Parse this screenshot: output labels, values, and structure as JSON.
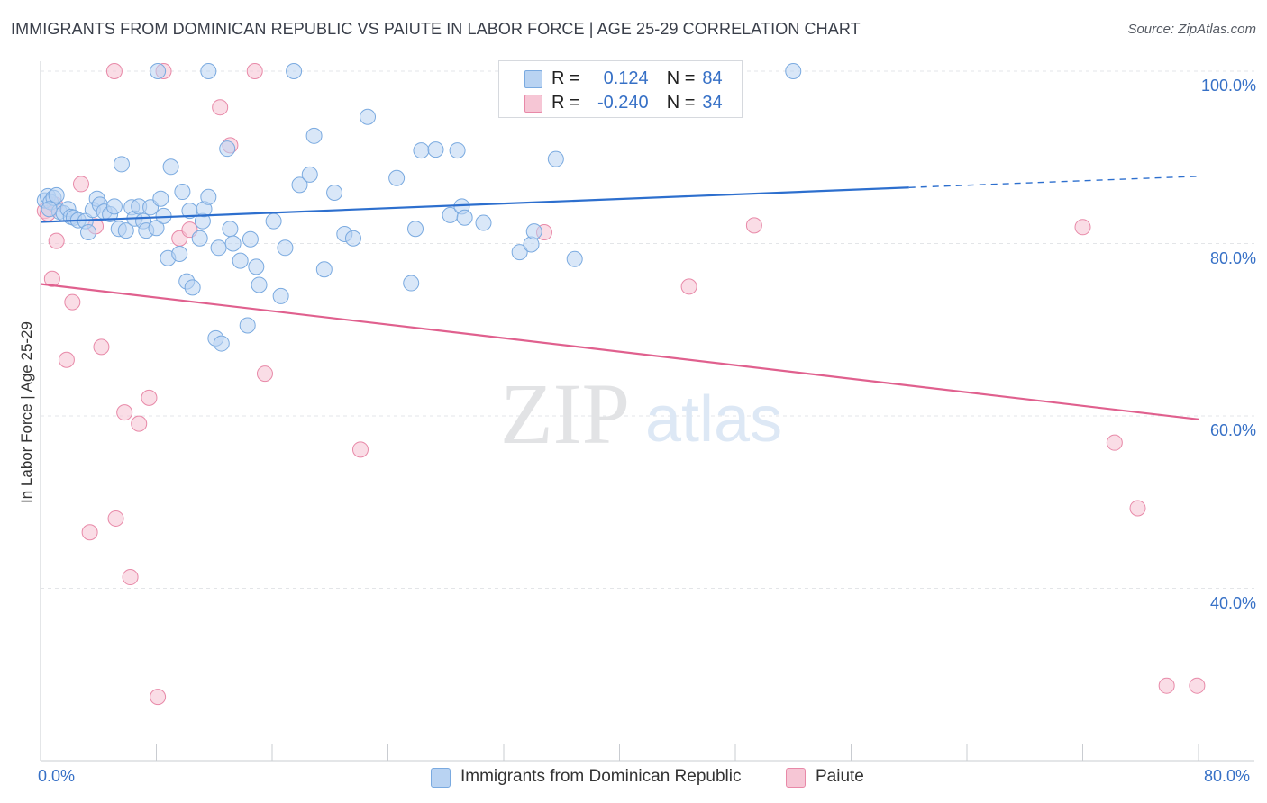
{
  "title": "IMMIGRANTS FROM DOMINICAN REPUBLIC VS PAIUTE IN LABOR FORCE | AGE 25-29 CORRELATION CHART",
  "source": "Source: ZipAtlas.com",
  "watermark": {
    "zip": "ZIP",
    "atlas": "atlas"
  },
  "legend": {
    "r_label": "R =",
    "n_label": "N =",
    "series": [
      {
        "name": "Immigrants from Dominican Republic",
        "r": "0.124",
        "n": "84",
        "color": "#7aaae0",
        "fill": "#b9d3f2"
      },
      {
        "name": "Paiute",
        "r": "-0.240",
        "n": "34",
        "color": "#e889a8",
        "fill": "#f6c6d5"
      }
    ]
  },
  "colors": {
    "blue_line": "#2d6fce",
    "pink_line": "#e0608e",
    "grid": "#e3e5e8",
    "tick_text": "#3670c6"
  },
  "chart_data": {
    "type": "scatter",
    "xlabel": "",
    "ylabel": "In Labor Force | Age 25-29",
    "xlim": [
      0,
      80
    ],
    "ylim": [
      20,
      100
    ],
    "x_tick_labels": {
      "min": "0.0%",
      "max": "80.0%"
    },
    "y_ticks": [
      {
        "value": 100,
        "label": "100.0%"
      },
      {
        "value": 80,
        "label": "80.0%"
      },
      {
        "value": 60,
        "label": "60.0%"
      },
      {
        "value": 40,
        "label": "40.0%"
      }
    ],
    "series": [
      {
        "name": "Immigrants from Dominican Republic",
        "trend": {
          "x0": 0,
          "y0": 82.5,
          "x1": 60,
          "y1": 86.5,
          "x_dashed_end": 80,
          "y_dashed_end": 87.8
        },
        "points": [
          [
            0.3,
            85.0
          ],
          [
            0.5,
            85.5
          ],
          [
            0.7,
            84.8
          ],
          [
            0.9,
            85.3
          ],
          [
            1.1,
            85.6
          ],
          [
            1.3,
            83.7
          ],
          [
            1.6,
            83.5
          ],
          [
            1.9,
            84.0
          ],
          [
            2.1,
            83.1
          ],
          [
            2.3,
            83.0
          ],
          [
            2.6,
            82.7
          ],
          [
            3.1,
            82.6
          ],
          [
            3.3,
            81.3
          ],
          [
            3.6,
            83.9
          ],
          [
            3.9,
            85.2
          ],
          [
            4.1,
            84.5
          ],
          [
            4.4,
            83.7
          ],
          [
            4.8,
            83.4
          ],
          [
            5.1,
            84.3
          ],
          [
            5.4,
            81.7
          ],
          [
            5.6,
            89.2
          ],
          [
            5.9,
            81.5
          ],
          [
            6.3,
            84.2
          ],
          [
            6.5,
            82.9
          ],
          [
            6.8,
            84.3
          ],
          [
            7.1,
            82.6
          ],
          [
            7.3,
            81.5
          ],
          [
            7.6,
            84.2
          ],
          [
            8.0,
            81.8
          ],
          [
            8.3,
            85.2
          ],
          [
            8.5,
            83.2
          ],
          [
            8.8,
            78.3
          ],
          [
            9.0,
            88.9
          ],
          [
            9.6,
            78.8
          ],
          [
            9.8,
            86.0
          ],
          [
            10.1,
            75.6
          ],
          [
            10.3,
            83.8
          ],
          [
            10.5,
            74.9
          ],
          [
            11.0,
            80.6
          ],
          [
            11.2,
            82.6
          ],
          [
            11.3,
            84.0
          ],
          [
            11.6,
            85.4
          ],
          [
            12.1,
            69.0
          ],
          [
            12.3,
            79.5
          ],
          [
            12.5,
            68.4
          ],
          [
            12.9,
            91.0
          ],
          [
            13.1,
            81.7
          ],
          [
            13.3,
            80.0
          ],
          [
            13.8,
            78.0
          ],
          [
            14.3,
            70.5
          ],
          [
            14.5,
            80.5
          ],
          [
            14.9,
            77.3
          ],
          [
            15.1,
            75.2
          ],
          [
            16.1,
            82.6
          ],
          [
            16.6,
            73.9
          ],
          [
            16.9,
            79.5
          ],
          [
            17.9,
            86.8
          ],
          [
            18.6,
            88.0
          ],
          [
            18.9,
            92.5
          ],
          [
            19.6,
            77.0
          ],
          [
            20.3,
            85.9
          ],
          [
            21.0,
            81.1
          ],
          [
            21.6,
            80.6
          ],
          [
            22.6,
            94.7
          ],
          [
            24.6,
            87.6
          ],
          [
            25.6,
            75.4
          ],
          [
            25.9,
            81.7
          ],
          [
            26.3,
            90.8
          ],
          [
            27.3,
            90.9
          ],
          [
            28.3,
            83.3
          ],
          [
            28.8,
            90.8
          ],
          [
            29.1,
            84.3
          ],
          [
            29.3,
            83.0
          ],
          [
            30.6,
            82.4
          ],
          [
            33.1,
            79.0
          ],
          [
            33.9,
            79.9
          ],
          [
            34.1,
            81.4
          ],
          [
            35.6,
            89.8
          ],
          [
            36.9,
            78.2
          ],
          [
            8.1,
            100.0
          ],
          [
            11.6,
            100.0
          ],
          [
            17.5,
            100.0
          ],
          [
            52.0,
            100.0
          ],
          [
            0.6,
            84.0
          ]
        ]
      },
      {
        "name": "Paiute",
        "trend": {
          "x0": 0,
          "y0": 75.3,
          "x1": 80,
          "y1": 59.6
        },
        "points": [
          [
            0.3,
            83.8
          ],
          [
            0.8,
            75.9
          ],
          [
            1.1,
            80.3
          ],
          [
            1.8,
            66.5
          ],
          [
            2.2,
            73.2
          ],
          [
            2.8,
            86.9
          ],
          [
            3.4,
            46.5
          ],
          [
            3.8,
            82.0
          ],
          [
            4.2,
            68.0
          ],
          [
            5.2,
            48.1
          ],
          [
            5.1,
            100.0
          ],
          [
            5.8,
            60.4
          ],
          [
            6.2,
            41.3
          ],
          [
            6.8,
            59.1
          ],
          [
            7.5,
            62.1
          ],
          [
            8.1,
            27.4
          ],
          [
            8.5,
            100.0
          ],
          [
            9.6,
            80.6
          ],
          [
            10.3,
            81.6
          ],
          [
            12.4,
            95.8
          ],
          [
            13.1,
            91.4
          ],
          [
            14.8,
            100.0
          ],
          [
            15.5,
            64.9
          ],
          [
            22.1,
            56.1
          ],
          [
            34.8,
            81.3
          ],
          [
            44.8,
            75.0
          ],
          [
            49.3,
            82.1
          ],
          [
            72.0,
            81.9
          ],
          [
            74.2,
            56.9
          ],
          [
            75.8,
            49.3
          ],
          [
            77.8,
            28.7
          ],
          [
            79.9,
            28.7
          ],
          [
            0.5,
            83.5
          ],
          [
            1.0,
            84.5
          ]
        ]
      }
    ]
  }
}
